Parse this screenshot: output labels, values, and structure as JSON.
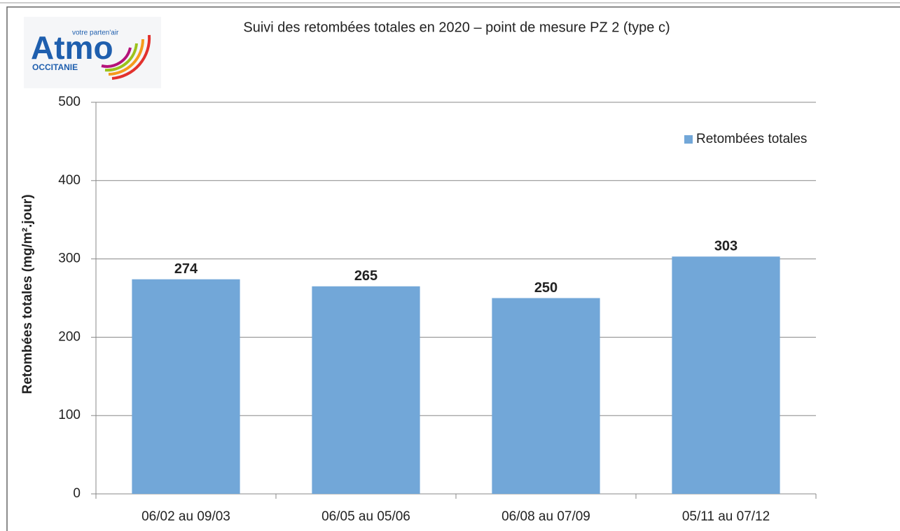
{
  "logo": {
    "name": "Atmo",
    "tagline": "votre parten'air",
    "region": "OCCITANIE"
  },
  "chart_data": {
    "type": "bar",
    "title": "Suivi des retombées totales en 2020 – point de mesure PZ 2 (type c)",
    "y_label": "Retombées totales (mg/m².jour)",
    "categories": [
      "06/02 au 09/03",
      "06/05 au 05/06",
      "06/08 au 07/09",
      "05/11 au 07/12"
    ],
    "series": [
      {
        "name": "Retombées totales",
        "color": "#72a7d8",
        "values": [
          274,
          265,
          250,
          303
        ]
      }
    ],
    "ylim": [
      0,
      500
    ],
    "yticks": [
      0,
      100,
      200,
      300,
      400,
      500
    ],
    "grid": true,
    "legend": "top-right"
  }
}
